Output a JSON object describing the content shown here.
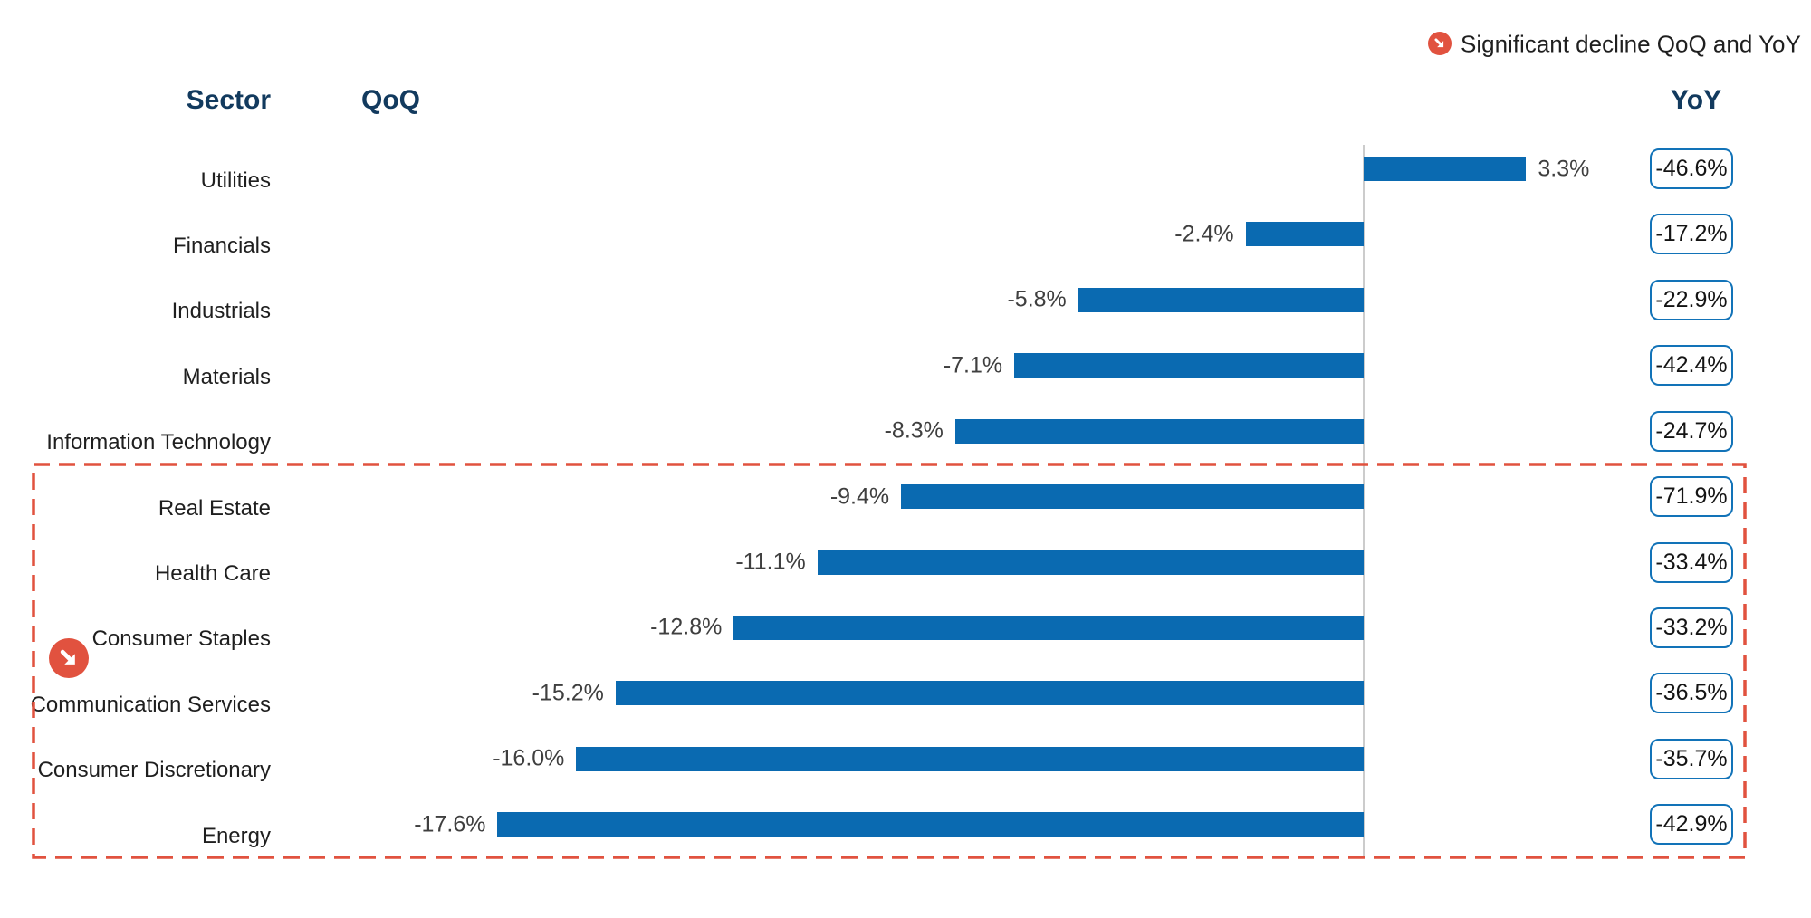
{
  "header": {
    "sector": "Sector",
    "qoq": "QoQ",
    "yoy": "YoY"
  },
  "legend": {
    "label": "Significant decline QoQ and YoY",
    "icon": "arrow-down-right-icon"
  },
  "colors": {
    "bar_blue": "#0a6ab1",
    "box_border_blue": "#1273b8",
    "header_navy": "#123a5e",
    "highlight_red": "#e1523f",
    "baseline_gray": "#cccccc"
  },
  "rows": [
    {
      "sector": "Utilities",
      "qoq": 3.3,
      "qoq_label": "3.3%",
      "yoy": -46.6,
      "yoy_label": "-46.6%",
      "highlighted": false
    },
    {
      "sector": "Financials",
      "qoq": -2.4,
      "qoq_label": "-2.4%",
      "yoy": -17.2,
      "yoy_label": "-17.2%",
      "highlighted": false
    },
    {
      "sector": "Industrials",
      "qoq": -5.8,
      "qoq_label": "-5.8%",
      "yoy": -22.9,
      "yoy_label": "-22.9%",
      "highlighted": false
    },
    {
      "sector": "Materials",
      "qoq": -7.1,
      "qoq_label": "-7.1%",
      "yoy": -42.4,
      "yoy_label": "-42.4%",
      "highlighted": false
    },
    {
      "sector": "Information Technology",
      "qoq": -8.3,
      "qoq_label": "-8.3%",
      "yoy": -24.7,
      "yoy_label": "-24.7%",
      "highlighted": false
    },
    {
      "sector": "Real Estate",
      "qoq": -9.4,
      "qoq_label": "-9.4%",
      "yoy": -71.9,
      "yoy_label": "-71.9%",
      "highlighted": true
    },
    {
      "sector": "Health Care",
      "qoq": -11.1,
      "qoq_label": "-11.1%",
      "yoy": -33.4,
      "yoy_label": "-33.4%",
      "highlighted": true
    },
    {
      "sector": "Consumer Staples",
      "qoq": -12.8,
      "qoq_label": "-12.8%",
      "yoy": -33.2,
      "yoy_label": "-33.2%",
      "highlighted": true
    },
    {
      "sector": "Communication Services",
      "qoq": -15.2,
      "qoq_label": "-15.2%",
      "yoy": -36.5,
      "yoy_label": "-36.5%",
      "highlighted": true
    },
    {
      "sector": "Consumer Discretionary",
      "qoq": -16.0,
      "qoq_label": "-16.0%",
      "yoy": -35.7,
      "yoy_label": "-35.7%",
      "highlighted": true
    },
    {
      "sector": "Energy",
      "qoq": -17.6,
      "qoq_label": "-17.6%",
      "yoy": -42.9,
      "yoy_label": "-42.9%",
      "highlighted": true
    }
  ],
  "chart_data": {
    "type": "bar",
    "orientation": "horizontal",
    "title": "",
    "xlabel": "QoQ",
    "ylabel": "Sector",
    "categories": [
      "Utilities",
      "Financials",
      "Industrials",
      "Materials",
      "Information Technology",
      "Real Estate",
      "Health Care",
      "Consumer Staples",
      "Communication Services",
      "Consumer Discretionary",
      "Energy"
    ],
    "series": [
      {
        "name": "QoQ",
        "values": [
          3.3,
          -2.4,
          -5.8,
          -7.1,
          -8.3,
          -9.4,
          -11.1,
          -12.8,
          -15.2,
          -16.0,
          -17.6
        ],
        "display": "bars"
      },
      {
        "name": "YoY",
        "values": [
          -46.6,
          -17.2,
          -22.9,
          -42.4,
          -24.7,
          -71.9,
          -33.4,
          -33.2,
          -36.5,
          -35.7,
          -42.9
        ],
        "display": "boxed-values"
      }
    ],
    "legend_entries": [
      "Significant decline QoQ and YoY"
    ],
    "legend_position": "top-right",
    "grid": false,
    "annotations": [
      "Dashed red rectangle highlights sectors with significant decline QoQ and YoY: Real Estate, Health Care, Consumer Staples, Communication Services, Consumer Discretionary, Energy"
    ]
  }
}
